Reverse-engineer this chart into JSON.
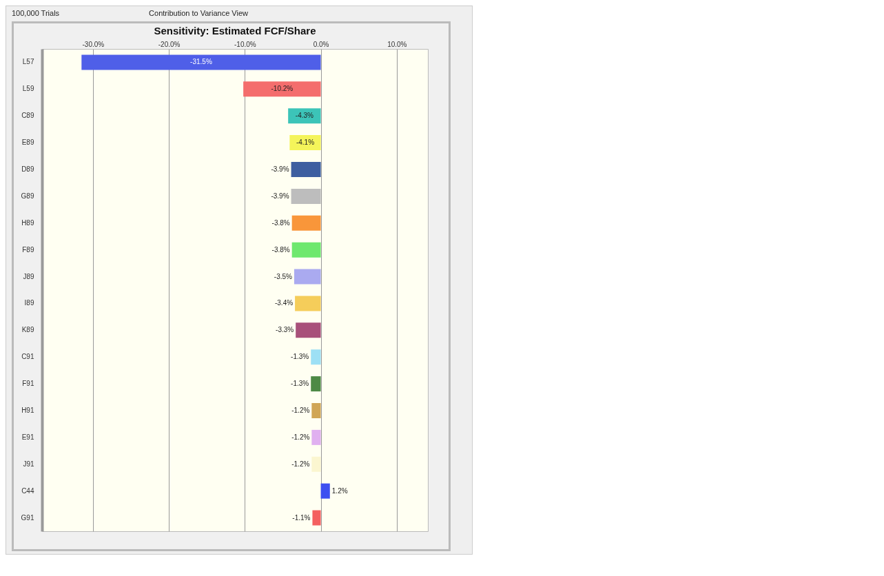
{
  "chart_data": {
    "type": "bar",
    "orientation": "horizontal",
    "title": "Sensitivity: Estimated FCF/Share",
    "annotations": [
      "100,000 Trials",
      "Contribution to Variance View"
    ],
    "categories": [
      "L57",
      "L59",
      "C89",
      "E89",
      "D89",
      "G89",
      "H89",
      "F89",
      "J89",
      "I89",
      "K89",
      "C91",
      "F91",
      "H91",
      "E91",
      "J91",
      "C44",
      "G91"
    ],
    "values": [
      -31.5,
      -10.2,
      -4.3,
      -4.1,
      -3.9,
      -3.9,
      -3.8,
      -3.8,
      -3.5,
      -3.4,
      -3.3,
      -1.3,
      -1.3,
      -1.2,
      -1.2,
      -1.2,
      1.2,
      -1.1
    ],
    "value_labels": [
      "-31.5%",
      "-10.2%",
      "-4.3%",
      "-4.1%",
      "-3.9%",
      "-3.9%",
      "-3.8%",
      "-3.8%",
      "-3.5%",
      "-3.4%",
      "-3.3%",
      "-1.3%",
      "-1.3%",
      "-1.2%",
      "-1.2%",
      "-1.2%",
      "1.2%",
      "-1.1%"
    ],
    "colors": [
      "#4f5fe8",
      "#f46d6d",
      "#3cc4b8",
      "#f4f45a",
      "#3d5ea0",
      "#bdbdbd",
      "#f9963a",
      "#6ee86e",
      "#aaaaf0",
      "#f5cd5a",
      "#a8507a",
      "#9de0f5",
      "#4e8a45",
      "#d0a555",
      "#e0b0f0",
      "#fbf6d0",
      "#3d4ff0",
      "#f46060"
    ],
    "xlim": [
      -36.7,
      14.1
    ],
    "xticks": [
      {
        "value": -30,
        "label": "-30.0%"
      },
      {
        "value": -20,
        "label": "-20.0%"
      },
      {
        "value": -10,
        "label": "-10.0%"
      },
      {
        "value": 0,
        "label": "0.0%"
      },
      {
        "value": 10,
        "label": "10.0%"
      }
    ],
    "grid": "x"
  }
}
